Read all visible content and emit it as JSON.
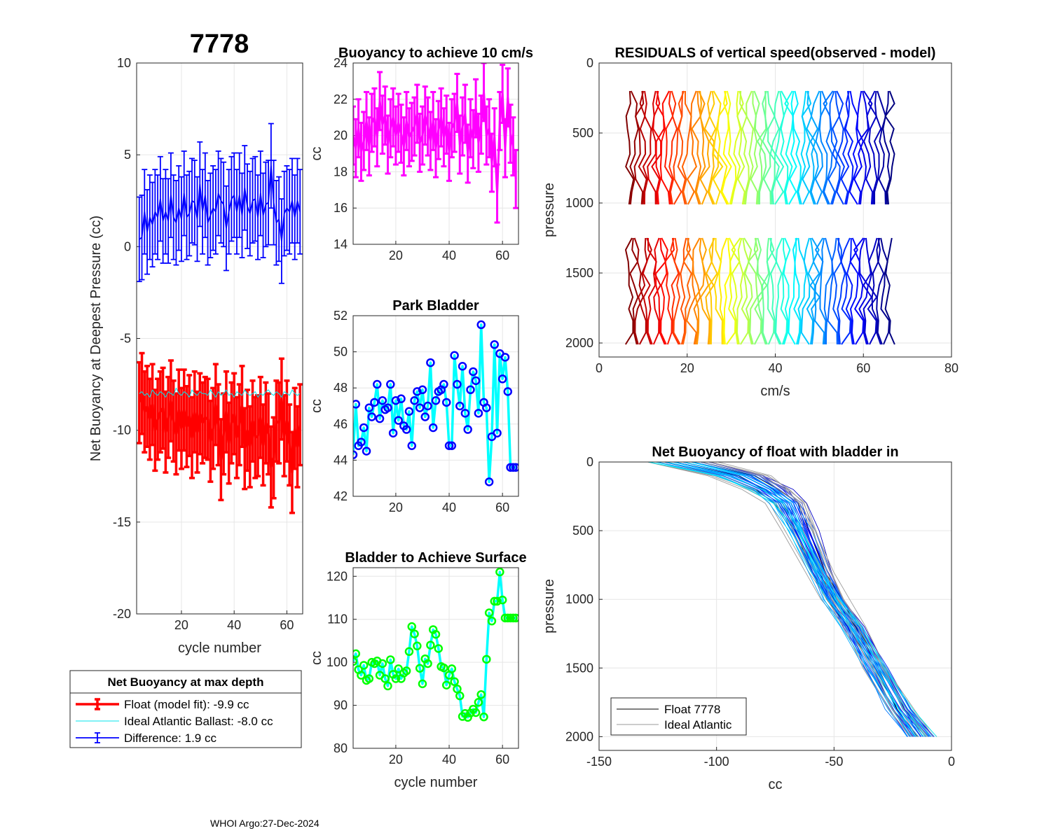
{
  "figure": {
    "big_title": "7778",
    "footer": "WHOI Argo:27-Dec-2024"
  },
  "chart_data": [
    {
      "id": "netbuoy",
      "type": "line",
      "title": "",
      "xlabel": "cycle number",
      "ylabel": "Net Buoyancy at Deepest Pressure (cc)",
      "xlim": [
        3,
        66
      ],
      "ylim": [
        -20,
        10
      ],
      "xticks": [
        20,
        40,
        60
      ],
      "yticks": [
        -20,
        -15,
        -10,
        -5,
        0,
        5,
        10
      ],
      "grid": true,
      "legend": {
        "title": "Net Buoyancy at max depth",
        "entries": [
          {
            "label": "Float (model fit):  -9.9 cc",
            "color": "#ff0000"
          },
          {
            "label": "Ideal Atlantic Ballast:  -8.0 cc",
            "color": "#00e5ee"
          },
          {
            "label": "Difference:   1.9 cc",
            "color": "#0000ff"
          }
        ]
      },
      "x": [
        4,
        5,
        6,
        7,
        8,
        9,
        10,
        11,
        12,
        13,
        14,
        15,
        16,
        17,
        18,
        19,
        20,
        21,
        22,
        23,
        24,
        25,
        26,
        27,
        28,
        29,
        30,
        31,
        32,
        33,
        34,
        35,
        36,
        37,
        38,
        39,
        40,
        41,
        42,
        43,
        44,
        45,
        46,
        47,
        48,
        49,
        50,
        51,
        52,
        53,
        54,
        55,
        56,
        57,
        58,
        59,
        60,
        61,
        62,
        63,
        64,
        65
      ],
      "series": [
        {
          "name": "Float (model fit)",
          "color": "#ff0000",
          "values": [
            -8.5,
            -8.0,
            -9.0,
            -8.7,
            -9.4,
            -8.6,
            -10.0,
            -9.4,
            -9.0,
            -8.8,
            -10.1,
            -9.3,
            -8.4,
            -9.5,
            -10.2,
            -8.9,
            -9.9,
            -8.9,
            -9.8,
            -9.2,
            -10.4,
            -9.0,
            -10.1,
            -9.1,
            -9.6,
            -9.3,
            -9.4,
            -10.6,
            -9.9,
            -8.6,
            -9.7,
            -11.6,
            -10.2,
            -9.0,
            -10.7,
            -9.6,
            -9.1,
            -10.4,
            -9.7,
            -8.7,
            -11.0,
            -10.0,
            -10.9,
            -9.5,
            -10.4,
            -10.3,
            -9.3,
            -10.8,
            -9.6,
            -10.2,
            -12.0,
            -11.5,
            -9.5,
            -9.6,
            -8.3,
            -10.3,
            -9.5,
            -10.8,
            -12.3,
            -9.9,
            -10.9,
            -9.7
          ],
          "err": [
            2.2,
            2.2,
            2.2,
            2.2,
            2.2,
            2.2,
            2.2,
            2.2,
            2.2,
            2.2,
            2.2,
            2.2,
            2.2,
            2.2,
            2.2,
            2.2,
            2.2,
            2.2,
            2.2,
            2.2,
            2.2,
            2.2,
            2.2,
            2.2,
            2.2,
            2.2,
            2.2,
            2.2,
            2.2,
            2.2,
            2.2,
            2.2,
            2.2,
            2.2,
            2.2,
            2.2,
            2.2,
            2.2,
            2.2,
            2.2,
            2.2,
            2.2,
            2.2,
            2.2,
            2.2,
            2.2,
            2.2,
            2.2,
            2.2,
            2.2,
            2.2,
            2.2,
            2.2,
            2.2,
            2.2,
            2.2,
            2.2,
            2.2,
            2.2,
            2.2,
            2.2,
            2.2
          ]
        },
        {
          "name": "Ideal Atlantic Ballast",
          "color": "#00e5ee",
          "values": [
            -8.0,
            -7.9,
            -8.1,
            -8.0,
            -8.2,
            -7.8,
            -8.0,
            -8.1,
            -7.9,
            -8.0,
            -8.2,
            -7.9,
            -8.0,
            -8.1,
            -7.7,
            -8.0,
            -8.1,
            -7.9,
            -8.0,
            -8.2,
            -7.8,
            -8.0,
            -8.1,
            -7.9,
            -8.0,
            -8.0,
            -8.1,
            -7.8,
            -8.0,
            -8.2,
            -7.9,
            -8.1,
            -8.0,
            -7.8,
            -8.1,
            -8.0,
            -8.2,
            -7.9,
            -8.0,
            -8.1,
            -7.8,
            -8.0,
            -8.1,
            -8.0,
            -7.9,
            -8.2,
            -8.0,
            -8.1,
            -7.9,
            -7.8,
            -8.0,
            -8.1,
            -7.9,
            -8.0,
            -8.2,
            -7.9,
            -8.0,
            -8.1,
            -7.8,
            -8.0,
            -8.1,
            -8.0
          ]
        },
        {
          "name": "Difference",
          "color": "#0000ff",
          "values": [
            0.4,
            0.5,
            1.9,
            0.8,
            1.6,
            1.2,
            1.9,
            1.6,
            2.6,
            1.4,
            1.9,
            1.4,
            2.8,
            1.6,
            1.3,
            2.1,
            1.5,
            2.9,
            1.6,
            1.8,
            2.5,
            2.4,
            1.5,
            3.4,
            1.9,
            2.8,
            1.3,
            1.7,
            2.1,
            1.9,
            2.9,
            2.5,
            2.3,
            1.0,
            1.9,
            2.6,
            2.8,
            1.9,
            2.8,
            1.7,
            3.2,
            2.2,
            1.8,
            2.5,
            2.6,
            1.6,
            2.9,
            1.7,
            2.3,
            2.4,
            4.4,
            2.4,
            1.3,
            1.5,
            0.3,
            1.8,
            2.1,
            1.9,
            2.5,
            1.6,
            2.5,
            1.9
          ],
          "err": [
            2.3,
            2.3,
            2.3,
            2.3,
            2.3,
            2.3,
            2.3,
            2.3,
            2.3,
            2.3,
            2.3,
            2.3,
            2.3,
            2.3,
            2.3,
            2.3,
            2.3,
            2.3,
            2.3,
            2.3,
            2.3,
            2.3,
            2.3,
            2.3,
            2.3,
            2.3,
            2.3,
            2.3,
            2.3,
            2.3,
            2.3,
            2.3,
            2.3,
            2.3,
            2.3,
            2.3,
            2.3,
            2.3,
            2.3,
            2.3,
            2.3,
            2.3,
            2.3,
            2.3,
            2.3,
            2.3,
            2.3,
            2.3,
            2.3,
            2.3,
            2.3,
            2.3,
            2.3,
            2.3,
            2.3,
            2.3,
            2.3,
            2.3,
            2.3,
            2.3,
            2.3,
            2.3
          ]
        }
      ]
    },
    {
      "id": "buoy10",
      "type": "line",
      "title": "Buoyancy to achieve 10 cm/s",
      "xlabel": "",
      "ylabel": "cc",
      "xlim": [
        4,
        66
      ],
      "ylim": [
        14,
        24
      ],
      "xticks": [
        20,
        40,
        60
      ],
      "yticks": [
        14,
        16,
        18,
        20,
        22,
        24
      ],
      "grid": true,
      "x": [
        4,
        5,
        6,
        7,
        8,
        9,
        10,
        11,
        12,
        13,
        14,
        15,
        16,
        17,
        18,
        19,
        20,
        21,
        22,
        23,
        24,
        25,
        26,
        27,
        28,
        29,
        30,
        31,
        32,
        33,
        34,
        35,
        36,
        37,
        38,
        39,
        40,
        41,
        42,
        43,
        44,
        45,
        46,
        47,
        48,
        49,
        50,
        51,
        52,
        53,
        54,
        55,
        56,
        57,
        58,
        59,
        60,
        61,
        62,
        63,
        64,
        65
      ],
      "series": [
        {
          "name": "buoyancy",
          "color": "#ff00ff",
          "values": [
            20.0,
            19.3,
            20.4,
            19.1,
            19.7,
            20.8,
            19.4,
            20.7,
            21.0,
            19.9,
            21.9,
            20.6,
            21.1,
            19.5,
            20.4,
            21.0,
            20.0,
            20.7,
            20.1,
            19.4,
            20.8,
            19.9,
            20.2,
            20.5,
            21.2,
            19.6,
            20.0,
            21.1,
            20.5,
            19.7,
            20.8,
            19.3,
            20.3,
            21.0,
            19.9,
            20.6,
            19.1,
            20.4,
            20.7,
            21.8,
            19.5,
            20.5,
            21.2,
            19.0,
            20.4,
            19.8,
            21.5,
            19.6,
            20.6,
            22.4,
            20.0,
            20.4,
            18.5,
            19.9,
            16.8,
            20.8,
            22.3,
            19.3,
            22.1,
            20.1,
            19.4,
            17.6
          ],
          "err": [
            1.6,
            1.6,
            1.6,
            1.6,
            1.6,
            1.6,
            1.6,
            1.6,
            1.6,
            1.6,
            1.6,
            1.6,
            1.6,
            1.6,
            1.6,
            1.6,
            1.6,
            1.6,
            1.6,
            1.6,
            1.6,
            1.6,
            1.6,
            1.6,
            1.6,
            1.6,
            1.6,
            1.6,
            1.6,
            1.6,
            1.6,
            1.6,
            1.6,
            1.6,
            1.6,
            1.6,
            1.6,
            1.6,
            1.6,
            1.6,
            1.6,
            1.6,
            1.6,
            1.6,
            1.6,
            1.6,
            1.6,
            1.6,
            1.6,
            1.6,
            1.6,
            1.6,
            1.6,
            1.6,
            1.6,
            1.6,
            1.6,
            1.6,
            1.6,
            1.6,
            1.6,
            1.6
          ]
        }
      ]
    },
    {
      "id": "park",
      "type": "line",
      "title": "Park Bladder",
      "xlabel": "",
      "ylabel": "cc",
      "xlim": [
        4,
        66
      ],
      "ylim": [
        42,
        52
      ],
      "xticks": [
        20,
        40,
        60
      ],
      "yticks": [
        42,
        44,
        46,
        48,
        50,
        52
      ],
      "grid": true,
      "x": [
        4,
        5,
        6,
        7,
        8,
        9,
        10,
        11,
        12,
        13,
        14,
        15,
        16,
        17,
        18,
        19,
        20,
        21,
        22,
        23,
        24,
        25,
        26,
        27,
        28,
        29,
        30,
        31,
        32,
        33,
        34,
        35,
        36,
        37,
        38,
        39,
        40,
        41,
        42,
        43,
        44,
        45,
        46,
        47,
        48,
        49,
        50,
        51,
        52,
        53,
        54,
        55,
        56,
        57,
        58,
        59,
        60,
        61,
        62,
        63,
        64,
        65
      ],
      "series": [
        {
          "name": "park bladder",
          "color": "#00ffff",
          "marker": "#0000ff",
          "values": [
            44.3,
            47.1,
            44.8,
            45.0,
            45.8,
            44.5,
            46.9,
            46.4,
            47.2,
            48.2,
            46.3,
            47.3,
            46.8,
            46.9,
            48.2,
            45.5,
            47.3,
            46.2,
            47.4,
            45.9,
            45.7,
            46.7,
            44.8,
            47.3,
            47.8,
            46.9,
            47.9,
            46.4,
            47.0,
            49.4,
            45.8,
            47.3,
            47.8,
            47.9,
            48.2,
            47.2,
            44.8,
            44.8,
            49.8,
            48.2,
            47.0,
            49.2,
            46.6,
            45.7,
            47.9,
            48.9,
            48.4,
            46.6,
            51.5,
            47.2,
            46.9,
            42.8,
            45.3,
            50.4,
            45.5,
            49.9,
            48.5,
            49.7,
            47.8,
            43.6,
            43.6,
            43.6
          ]
        }
      ]
    },
    {
      "id": "surface",
      "type": "line",
      "title": "Bladder to Achieve Surface",
      "xlabel": "cycle number",
      "ylabel": "cc",
      "xlim": [
        4,
        66
      ],
      "ylim": [
        80,
        122
      ],
      "xticks": [
        20,
        40,
        60
      ],
      "yticks": [
        80,
        90,
        100,
        110,
        120
      ],
      "grid": true,
      "x": [
        4,
        5,
        6,
        7,
        8,
        9,
        10,
        11,
        12,
        13,
        14,
        15,
        16,
        17,
        18,
        19,
        20,
        21,
        22,
        23,
        24,
        25,
        26,
        27,
        28,
        29,
        30,
        31,
        32,
        33,
        34,
        35,
        36,
        37,
        38,
        39,
        40,
        41,
        42,
        43,
        44,
        45,
        46,
        47,
        48,
        49,
        50,
        51,
        52,
        53,
        54,
        55,
        56,
        57,
        58,
        59,
        60,
        61,
        62,
        63,
        64,
        65
      ],
      "series": [
        {
          "name": "surface bladder",
          "color": "#00ffff",
          "marker": "#00ff00",
          "values": [
            100.2,
            102.0,
            98.3,
            97.0,
            99.3,
            95.8,
            96.2,
            100.0,
            99.7,
            100.3,
            97.0,
            99.7,
            96.2,
            94.5,
            100.6,
            97.2,
            96.2,
            98.5,
            96.2,
            97.5,
            98.0,
            102.5,
            108.3,
            106.6,
            103.8,
            98.6,
            95.0,
            100.8,
            99.7,
            104.0,
            107.6,
            106.5,
            103.2,
            99.0,
            98.7,
            94.7,
            97.0,
            98.5,
            95.5,
            93.8,
            92.2,
            87.4,
            88.1,
            87.2,
            88.2,
            89.1,
            88.3,
            90.7,
            92.5,
            87.3,
            100.7,
            111.5,
            109.6,
            114.2,
            114.2,
            121.0,
            114.5,
            110.3,
            110.3,
            110.3,
            110.3,
            110.3
          ]
        }
      ]
    },
    {
      "id": "residuals",
      "type": "line",
      "title": "RESIDUALS of vertical speed(observed - model)",
      "xlabel": "cm/s",
      "ylabel": "pressure",
      "xlim": [
        0,
        80
      ],
      "ylim": [
        0,
        2100
      ],
      "xticks": [
        0,
        20,
        40,
        60,
        80
      ],
      "yticks": [
        0,
        500,
        1000,
        1500,
        2000
      ],
      "y_reversed": true,
      "grid": true,
      "profile_offsets_cms": [
        7,
        8,
        9,
        10,
        11,
        12,
        13,
        14,
        15,
        16,
        17,
        18,
        19,
        20,
        21,
        22,
        23,
        24,
        25,
        26,
        27,
        28,
        29,
        30,
        31,
        32,
        33,
        34,
        35,
        36,
        37,
        38,
        39,
        40,
        41,
        42,
        43,
        44,
        45,
        46,
        47,
        48,
        49,
        50,
        51,
        52,
        53,
        54,
        55,
        56,
        57,
        58,
        59,
        60,
        61,
        62,
        63,
        64,
        65,
        66
      ],
      "segments_dbar": [
        [
          200,
          1010
        ],
        [
          1250,
          2010
        ]
      ]
    },
    {
      "id": "netprofile",
      "type": "line",
      "title": "Net Buoyancy of float with bladder in",
      "xlabel": "cc",
      "ylabel": "pressure",
      "xlim": [
        -150,
        0
      ],
      "ylim": [
        0,
        2100
      ],
      "xticks": [
        -150,
        -100,
        -50,
        0
      ],
      "yticks": [
        0,
        500,
        1000,
        1500,
        2000
      ],
      "y_reversed": true,
      "grid": true,
      "legend": {
        "entries": [
          {
            "label": "Float 7778",
            "color": "#000000"
          },
          {
            "label": "Ideal Atlantic",
            "color": "#999999"
          }
        ]
      },
      "mean_profile": {
        "pressure": [
          0,
          100,
          200,
          300,
          500,
          800,
          1000,
          1200,
          1500,
          1800,
          2000
        ],
        "cc": [
          -115,
          -90,
          -78,
          -70,
          -64,
          -56,
          -50,
          -42,
          -32,
          -22,
          -13
        ]
      }
    }
  ]
}
